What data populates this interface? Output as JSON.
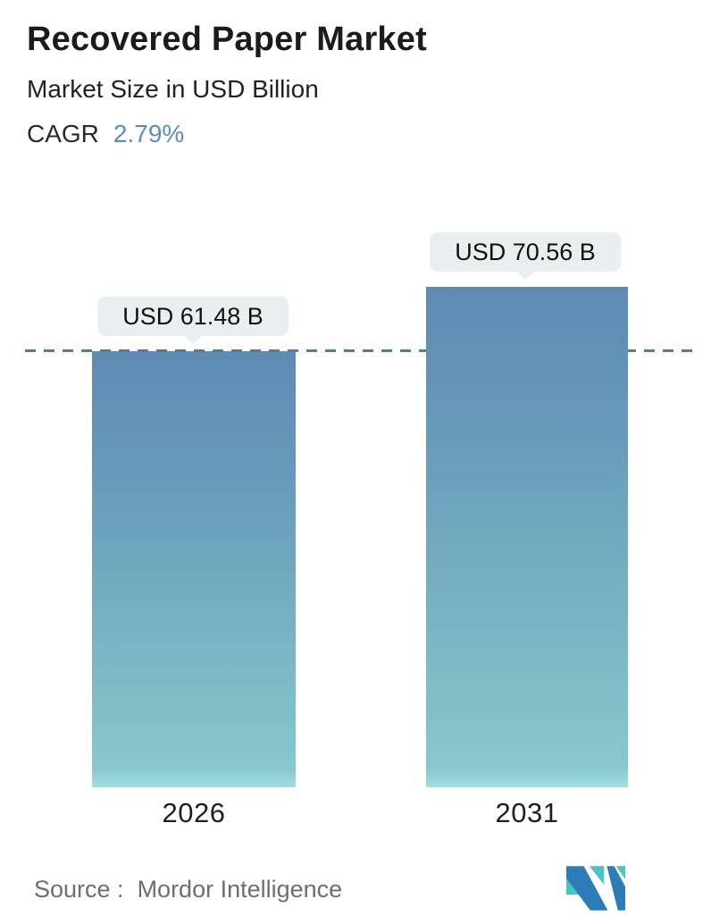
{
  "header": {
    "title": "Recovered Paper Market",
    "subtitle": "Market Size in USD Billion",
    "cagr_label": "CAGR",
    "cagr_value": "2.79%"
  },
  "chart_data": {
    "type": "bar",
    "title": "Recovered Paper Market",
    "subtitle": "Market Size in USD Billion",
    "unit": "USD Billion",
    "cagr_percent": 2.79,
    "categories": [
      "2026",
      "2031"
    ],
    "values": [
      61.48,
      70.56
    ],
    "value_labels": [
      "USD 61.48 B",
      "USD 70.56 B"
    ],
    "ylim": [
      0,
      70.56
    ],
    "grid": false,
    "legend": "none",
    "reference_line": {
      "style": "dashed",
      "at_value": 61.48,
      "color": "#4f7ca7"
    },
    "bar_gradient_top": "#5d8bb4",
    "bar_gradient_bottom": "#87c8cd",
    "label_bubble_bg": "#e9eef1"
  },
  "footer": {
    "source_label": "Source :",
    "source_value": "Mordor Intelligence",
    "logo": "mordor-intelligence-logo",
    "logo_teal": "#48c4c1",
    "logo_blue": "#2e7cb5"
  },
  "colors": {
    "accent_blue": "#5b8cbe",
    "title_text": "#1b1b1b",
    "source_text": "#6e6e6e",
    "background": "#ffffff"
  }
}
